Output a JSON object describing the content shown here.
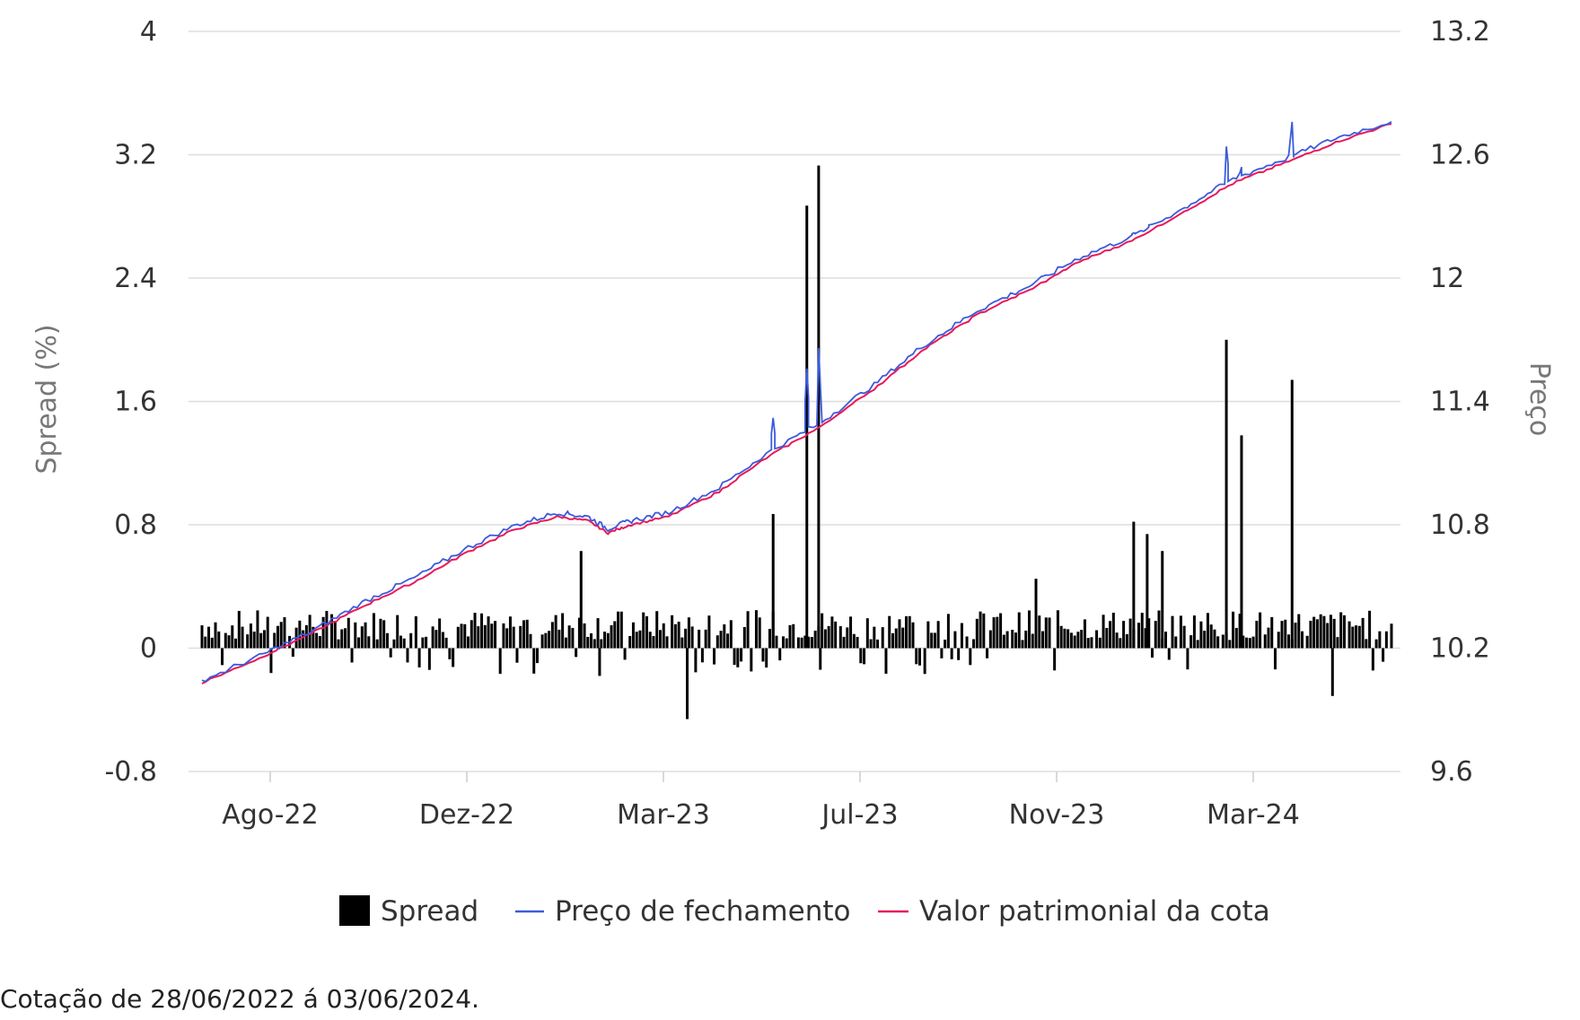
{
  "chart_data": {
    "type": "bar+line",
    "y_left": {
      "label": "Spread (%)",
      "ticks": [
        "4",
        "3.2",
        "2.4",
        "1.6",
        "0.8",
        "0",
        "-0.8"
      ],
      "range": [
        -0.8,
        4
      ]
    },
    "y_right": {
      "label": "Preço",
      "ticks": [
        "13.2",
        "12.6",
        "12",
        "11.4",
        "10.8",
        "10.2",
        "9.6"
      ],
      "range": [
        9.6,
        13.2
      ]
    },
    "x_ticks": [
      "Ago-22",
      "Dez-22",
      "Mar-23",
      "Jul-23",
      "Nov-23",
      "Mar-24"
    ],
    "x_range": [
      "2022-06-28",
      "2024-06-03"
    ],
    "grid": true,
    "legend_position": "bottom",
    "series": [
      {
        "name": "Spread",
        "kind": "bar",
        "color": "#000000",
        "axis": "left",
        "baseline": 0.15,
        "spikes": [
          {
            "date": "2023-02-08",
            "value": 0.63
          },
          {
            "date": "2023-02-19",
            "value": -0.18
          },
          {
            "date": "2023-04-12",
            "value": -0.46
          },
          {
            "date": "2023-06-02",
            "value": 0.87
          },
          {
            "date": "2023-06-22",
            "value": 2.87
          },
          {
            "date": "2023-06-29",
            "value": 3.13
          },
          {
            "date": "2023-06-30",
            "value": -0.14
          },
          {
            "date": "2023-11-05",
            "value": 0.45
          },
          {
            "date": "2024-01-02",
            "value": 0.82
          },
          {
            "date": "2024-01-10",
            "value": 0.74
          },
          {
            "date": "2024-01-19",
            "value": 0.63
          },
          {
            "date": "2024-02-26",
            "value": 2.0
          },
          {
            "date": "2024-03-06",
            "value": 1.38
          },
          {
            "date": "2024-04-05",
            "value": 1.74
          },
          {
            "date": "2024-04-29",
            "value": -0.31
          }
        ]
      },
      {
        "name": "Preço de fechamento",
        "kind": "line",
        "color": "#3b5bdb",
        "axis": "right",
        "points": [
          [
            "2022-06-28",
            10.04
          ],
          [
            "2022-08-01",
            10.16
          ],
          [
            "2022-09-01",
            10.28
          ],
          [
            "2022-10-01",
            10.42
          ],
          [
            "2022-11-01",
            10.54
          ],
          [
            "2022-12-01",
            10.68
          ],
          [
            "2023-01-01",
            10.8
          ],
          [
            "2023-01-25",
            10.86
          ],
          [
            "2023-02-12",
            10.84
          ],
          [
            "2023-02-24",
            10.78
          ],
          [
            "2023-03-10",
            10.82
          ],
          [
            "2023-04-01",
            10.86
          ],
          [
            "2023-05-01",
            10.98
          ],
          [
            "2023-06-01",
            11.16
          ],
          [
            "2023-07-01",
            11.3
          ],
          [
            "2023-08-01",
            11.48
          ],
          [
            "2023-09-01",
            11.68
          ],
          [
            "2023-10-01",
            11.84
          ],
          [
            "2023-11-01",
            11.96
          ],
          [
            "2023-12-01",
            12.1
          ],
          [
            "2024-01-01",
            12.2
          ],
          [
            "2024-02-01",
            12.34
          ],
          [
            "2024-03-01",
            12.48
          ],
          [
            "2024-04-01",
            12.58
          ],
          [
            "2024-05-01",
            12.68
          ],
          [
            "2024-06-03",
            12.76
          ]
        ],
        "spikes": [
          {
            "date": "2023-06-02",
            "value": 11.32
          },
          {
            "date": "2023-06-22",
            "value": 11.56
          },
          {
            "date": "2023-06-29",
            "value": 11.66
          },
          {
            "date": "2024-01-02",
            "value": 12.22
          },
          {
            "date": "2024-01-10",
            "value": 12.24
          },
          {
            "date": "2024-02-26",
            "value": 12.64
          },
          {
            "date": "2024-03-06",
            "value": 12.54
          },
          {
            "date": "2024-04-05",
            "value": 12.76
          }
        ]
      },
      {
        "name": "Valor patrimonial da cota",
        "kind": "line",
        "color": "#e8195a",
        "axis": "right",
        "points": [
          [
            "2022-06-28",
            10.03
          ],
          [
            "2022-08-01",
            10.15
          ],
          [
            "2022-09-01",
            10.27
          ],
          [
            "2022-10-01",
            10.4
          ],
          [
            "2022-11-01",
            10.52
          ],
          [
            "2022-12-01",
            10.66
          ],
          [
            "2023-01-01",
            10.78
          ],
          [
            "2023-01-25",
            10.84
          ],
          [
            "2023-02-12",
            10.82
          ],
          [
            "2023-02-24",
            10.76
          ],
          [
            "2023-03-10",
            10.8
          ],
          [
            "2023-04-01",
            10.84
          ],
          [
            "2023-05-01",
            10.96
          ],
          [
            "2023-06-01",
            11.14
          ],
          [
            "2023-07-01",
            11.28
          ],
          [
            "2023-08-01",
            11.46
          ],
          [
            "2023-09-01",
            11.66
          ],
          [
            "2023-10-01",
            11.82
          ],
          [
            "2023-11-01",
            11.94
          ],
          [
            "2023-12-01",
            12.08
          ],
          [
            "2024-01-01",
            12.18
          ],
          [
            "2024-02-01",
            12.32
          ],
          [
            "2024-03-01",
            12.46
          ],
          [
            "2024-04-01",
            12.56
          ],
          [
            "2024-05-01",
            12.66
          ],
          [
            "2024-06-03",
            12.75
          ]
        ]
      }
    ]
  },
  "footnote": "Cotação de 28/06/2022 á 03/06/2024."
}
